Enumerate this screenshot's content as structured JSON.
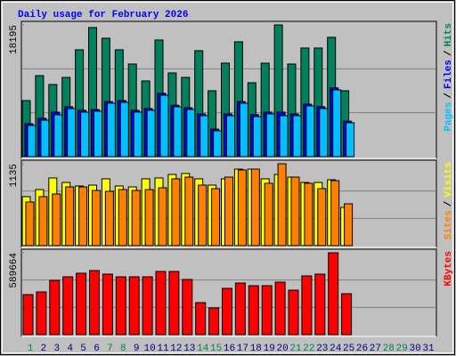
{
  "chart_data": [
    {
      "type": "bar",
      "title": "Daily usage for February 2026",
      "ylim": [
        0,
        18195
      ],
      "yticks": [
        18195
      ],
      "legend_separator": "/",
      "series": [
        {
          "name": "Hits",
          "color": "#00805c",
          "values": [
            7749,
            11193,
            9963,
            10947,
            14760,
            17835,
            16359,
            14760,
            12792,
            10455,
            16113,
            11562,
            10947,
            14637,
            9102,
            12915,
            15867,
            10209,
            12915,
            18195,
            12792,
            15006,
            15006,
            16482,
            9102,
            0,
            null,
            null,
            null,
            null,
            null
          ]
        },
        {
          "name": "Files",
          "color": "#0000ff",
          "values": [
            4550,
            5300,
            6150,
            6900,
            6400,
            6500,
            7600,
            7750,
            6400,
            6650,
            8750,
            7100,
            6750,
            5900,
            3800,
            5900,
            7600,
            5800,
            6150,
            6150,
            5900,
            7250,
            6900,
            9500,
            4900,
            0,
            null,
            null,
            null,
            null,
            null
          ]
        },
        {
          "name": "Pages",
          "color": "#00c0ff",
          "values": [
            4305,
            5043,
            5781,
            6642,
            6150,
            6273,
            7380,
            7503,
            6150,
            6396,
            8487,
            6888,
            6519,
            5658,
            3567,
            5658,
            7380,
            5535,
            5904,
            5658,
            5658,
            7011,
            6642,
            9225,
            4674,
            0,
            null,
            null,
            null,
            null,
            null
          ]
        }
      ]
    },
    {
      "type": "bar",
      "ylim": [
        0,
        1135
      ],
      "yticks": [
        1135
      ],
      "legend_separator": "/",
      "series": [
        {
          "name": "Visits",
          "color": "#ffff00",
          "values": [
            679,
            777,
            938,
            876,
            827,
            839,
            926,
            827,
            814,
            926,
            938,
            987,
            1000,
            926,
            839,
            926,
            1061,
            1061,
            926,
            987,
            950,
            876,
            876,
            913,
            531,
            0,
            null,
            null,
            null,
            null,
            null
          ]
        },
        {
          "name": "Sites",
          "color": "#ff8000",
          "values": [
            605,
            679,
            716,
            814,
            814,
            765,
            753,
            777,
            765,
            777,
            802,
            926,
            950,
            839,
            790,
            950,
            1049,
            1061,
            864,
            1135,
            950,
            864,
            790,
            901,
            580,
            0,
            null,
            null,
            null,
            null,
            null
          ]
        }
      ]
    },
    {
      "type": "bar",
      "ylim": [
        0,
        589664
      ],
      "yticks": [
        589664
      ],
      "categories": [
        "1",
        "2",
        "3",
        "4",
        "5",
        "6",
        "7",
        "8",
        "9",
        "10",
        "11",
        "12",
        "13",
        "14",
        "15",
        "16",
        "17",
        "18",
        "19",
        "20",
        "21",
        "22",
        "23",
        "24",
        "25",
        "26",
        "27",
        "28",
        "29",
        "30",
        "31"
      ],
      "category_colors": [
        "#00805c",
        "#000080",
        "#000080",
        "#000080",
        "#000080",
        "#000080",
        "#00805c",
        "#00805c",
        "#000080",
        "#000080",
        "#000080",
        "#000080",
        "#000080",
        "#00805c",
        "#00805c",
        "#000080",
        "#000080",
        "#000080",
        "#000080",
        "#000080",
        "#00805c",
        "#00805c",
        "#000080",
        "#000080",
        "#000080",
        "#000080",
        "#000080",
        "#00805c",
        "#00805c",
        "#000080",
        "#000080"
      ],
      "series": [
        {
          "name": "KBytes",
          "color": "#ff0000",
          "values": [
            288405,
            307632,
            390949,
            416585,
            442221,
            461448,
            435812,
            416585,
            416585,
            416585,
            455039,
            455039,
            397358,
            230724,
            192270,
            333268,
            371722,
            352495,
            352495,
            378131,
            320450,
            422994,
            435812,
            589664,
            294814,
            0,
            null,
            null,
            null,
            null,
            null
          ]
        }
      ]
    }
  ]
}
